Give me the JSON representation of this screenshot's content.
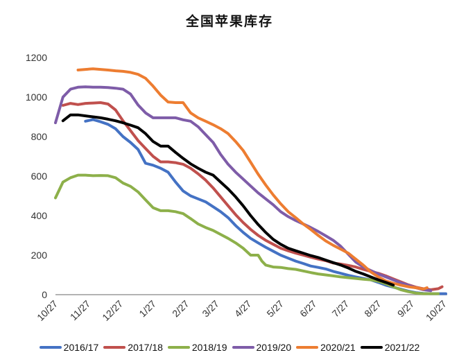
{
  "title": "全国苹果库存",
  "chart_data": {
    "type": "line",
    "title": "全国苹果库存",
    "xlabel": "",
    "ylabel": "",
    "ylim": [
      0,
      1200
    ],
    "yticks": [
      0,
      200,
      400,
      600,
      800,
      1000,
      1200
    ],
    "x_unit": "weeks since 10/27",
    "xlim": [
      0,
      52
    ],
    "xticks": [
      {
        "pos": 0,
        "label": "10/27"
      },
      {
        "pos": 4.35,
        "label": "11/27"
      },
      {
        "pos": 8.7,
        "label": "12/27"
      },
      {
        "pos": 13.1,
        "label": "1/27"
      },
      {
        "pos": 17.5,
        "label": "2/27"
      },
      {
        "pos": 21.5,
        "label": "3/27"
      },
      {
        "pos": 25.8,
        "label": "4/27"
      },
      {
        "pos": 30.1,
        "label": "5/27"
      },
      {
        "pos": 34.5,
        "label": "6/27"
      },
      {
        "pos": 38.8,
        "label": "7/27"
      },
      {
        "pos": 43.1,
        "label": "8/27"
      },
      {
        "pos": 47.5,
        "label": "9/27"
      },
      {
        "pos": 51.8,
        "label": "10/27"
      }
    ],
    "grid": false,
    "legend_position": "bottom",
    "series": [
      {
        "name": "2016/17",
        "color": "#4472C4",
        "points": [
          [
            4,
            878
          ],
          [
            5,
            886
          ],
          [
            6,
            875
          ],
          [
            7,
            862
          ],
          [
            8,
            840
          ],
          [
            9,
            800
          ],
          [
            10,
            770
          ],
          [
            11,
            735
          ],
          [
            12,
            665
          ],
          [
            13,
            655
          ],
          [
            14,
            640
          ],
          [
            15,
            620
          ],
          [
            16,
            570
          ],
          [
            17,
            525
          ],
          [
            18,
            500
          ],
          [
            19,
            485
          ],
          [
            20,
            470
          ],
          [
            21,
            445
          ],
          [
            22,
            420
          ],
          [
            23,
            390
          ],
          [
            24,
            350
          ],
          [
            25,
            315
          ],
          [
            26,
            285
          ],
          [
            27,
            262
          ],
          [
            28,
            240
          ],
          [
            29,
            220
          ],
          [
            30,
            200
          ],
          [
            31,
            185
          ],
          [
            32,
            170
          ],
          [
            33,
            158
          ],
          [
            34,
            145
          ],
          [
            35,
            138
          ],
          [
            36,
            130
          ],
          [
            37,
            118
          ],
          [
            38,
            108
          ],
          [
            39,
            98
          ],
          [
            40,
            90
          ],
          [
            41,
            82
          ],
          [
            42,
            75
          ],
          [
            43,
            62
          ],
          [
            44,
            48
          ],
          [
            45,
            38
          ],
          [
            46,
            28
          ],
          [
            47,
            18
          ],
          [
            48,
            10
          ],
          [
            49,
            6
          ],
          [
            50,
            5
          ],
          [
            51,
            5
          ],
          [
            52,
            5
          ]
        ]
      },
      {
        "name": "2017/18",
        "color": "#C0504D",
        "points": [
          [
            1,
            958
          ],
          [
            2,
            968
          ],
          [
            3,
            962
          ],
          [
            4,
            968
          ],
          [
            5,
            970
          ],
          [
            6,
            972
          ],
          [
            7,
            965
          ],
          [
            8,
            935
          ],
          [
            9,
            880
          ],
          [
            10,
            830
          ],
          [
            11,
            780
          ],
          [
            12,
            740
          ],
          [
            13,
            700
          ],
          [
            14,
            672
          ],
          [
            15,
            672
          ],
          [
            16,
            668
          ],
          [
            17,
            660
          ],
          [
            18,
            640
          ],
          [
            19,
            612
          ],
          [
            20,
            580
          ],
          [
            21,
            540
          ],
          [
            22,
            495
          ],
          [
            23,
            450
          ],
          [
            24,
            405
          ],
          [
            25,
            365
          ],
          [
            26,
            330
          ],
          [
            27,
            300
          ],
          [
            28,
            275
          ],
          [
            29,
            255
          ],
          [
            30,
            235
          ],
          [
            31,
            222
          ],
          [
            32,
            210
          ],
          [
            33,
            200
          ],
          [
            34,
            190
          ],
          [
            35,
            180
          ],
          [
            36,
            172
          ],
          [
            37,
            160
          ],
          [
            38,
            155
          ],
          [
            39,
            148
          ],
          [
            40,
            140
          ],
          [
            41,
            128
          ],
          [
            42,
            118
          ],
          [
            43,
            108
          ],
          [
            44,
            95
          ],
          [
            45,
            80
          ],
          [
            46,
            65
          ],
          [
            47,
            50
          ],
          [
            48,
            38
          ],
          [
            49,
            30
          ],
          [
            50,
            25
          ],
          [
            51,
            30
          ],
          [
            51.5,
            40
          ]
        ]
      },
      {
        "name": "2018/19",
        "color": "#8DB04A",
        "points": [
          [
            0,
            490
          ],
          [
            1,
            570
          ],
          [
            2,
            592
          ],
          [
            3,
            605
          ],
          [
            4,
            605
          ],
          [
            5,
            602
          ],
          [
            6,
            603
          ],
          [
            7,
            602
          ],
          [
            8,
            592
          ],
          [
            9,
            565
          ],
          [
            10,
            548
          ],
          [
            11,
            520
          ],
          [
            12,
            480
          ],
          [
            13,
            440
          ],
          [
            14,
            425
          ],
          [
            15,
            425
          ],
          [
            16,
            420
          ],
          [
            17,
            410
          ],
          [
            18,
            385
          ],
          [
            19,
            358
          ],
          [
            20,
            340
          ],
          [
            21,
            325
          ],
          [
            22,
            305
          ],
          [
            23,
            285
          ],
          [
            24,
            262
          ],
          [
            25,
            235
          ],
          [
            26,
            200
          ],
          [
            27,
            200
          ],
          [
            27.5,
            170
          ],
          [
            28,
            150
          ],
          [
            29,
            140
          ],
          [
            30,
            138
          ],
          [
            31,
            132
          ],
          [
            32,
            128
          ],
          [
            33,
            120
          ],
          [
            34,
            112
          ],
          [
            35,
            105
          ],
          [
            36,
            100
          ],
          [
            37,
            95
          ],
          [
            38,
            90
          ],
          [
            39,
            86
          ],
          [
            40,
            82
          ],
          [
            41,
            78
          ],
          [
            42,
            75
          ],
          [
            43,
            68
          ],
          [
            44,
            55
          ],
          [
            45,
            40
          ],
          [
            46,
            25
          ],
          [
            47,
            15
          ],
          [
            48,
            8
          ],
          [
            49,
            5
          ],
          [
            50,
            5
          ],
          [
            51,
            5
          ]
        ]
      },
      {
        "name": "2019/20",
        "color": "#7E5CA8",
        "points": [
          [
            0,
            870
          ],
          [
            1,
            1000
          ],
          [
            2,
            1040
          ],
          [
            3,
            1050
          ],
          [
            4,
            1052
          ],
          [
            5,
            1050
          ],
          [
            6,
            1050
          ],
          [
            7,
            1048
          ],
          [
            8,
            1045
          ],
          [
            9,
            1040
          ],
          [
            10,
            1015
          ],
          [
            11,
            960
          ],
          [
            12,
            920
          ],
          [
            13,
            895
          ],
          [
            14,
            895
          ],
          [
            15,
            895
          ],
          [
            16,
            895
          ],
          [
            17,
            885
          ],
          [
            18,
            878
          ],
          [
            19,
            850
          ],
          [
            20,
            810
          ],
          [
            21,
            770
          ],
          [
            22,
            710
          ],
          [
            23,
            660
          ],
          [
            24,
            620
          ],
          [
            25,
            585
          ],
          [
            26,
            550
          ],
          [
            27,
            515
          ],
          [
            28,
            485
          ],
          [
            29,
            455
          ],
          [
            30,
            420
          ],
          [
            31,
            395
          ],
          [
            32,
            375
          ],
          [
            33,
            358
          ],
          [
            34,
            340
          ],
          [
            35,
            320
          ],
          [
            36,
            298
          ],
          [
            37,
            275
          ],
          [
            38,
            245
          ],
          [
            39,
            205
          ],
          [
            40,
            165
          ],
          [
            41,
            140
          ],
          [
            42,
            122
          ],
          [
            43,
            105
          ],
          [
            44,
            90
          ],
          [
            45,
            75
          ],
          [
            46,
            60
          ],
          [
            47,
            48
          ],
          [
            48,
            35
          ],
          [
            49,
            25
          ],
          [
            50,
            20
          ]
        ]
      },
      {
        "name": "2020/21",
        "color": "#ED7D31",
        "points": [
          [
            3,
            1137
          ],
          [
            4,
            1140
          ],
          [
            5,
            1143
          ],
          [
            6,
            1140
          ],
          [
            7,
            1137
          ],
          [
            8,
            1133
          ],
          [
            9,
            1130
          ],
          [
            10,
            1125
          ],
          [
            11,
            1115
          ],
          [
            12,
            1095
          ],
          [
            13,
            1055
          ],
          [
            14,
            1010
          ],
          [
            15,
            975
          ],
          [
            16,
            972
          ],
          [
            17,
            972
          ],
          [
            18,
            920
          ],
          [
            19,
            895
          ],
          [
            20,
            878
          ],
          [
            21,
            860
          ],
          [
            22,
            840
          ],
          [
            23,
            815
          ],
          [
            24,
            775
          ],
          [
            25,
            730
          ],
          [
            26,
            670
          ],
          [
            27,
            610
          ],
          [
            28,
            555
          ],
          [
            29,
            505
          ],
          [
            30,
            460
          ],
          [
            31,
            420
          ],
          [
            32,
            390
          ],
          [
            33,
            358
          ],
          [
            34,
            330
          ],
          [
            35,
            300
          ],
          [
            36,
            272
          ],
          [
            37,
            250
          ],
          [
            38,
            230
          ],
          [
            39,
            210
          ],
          [
            40,
            180
          ],
          [
            41,
            150
          ],
          [
            42,
            115
          ],
          [
            43,
            90
          ],
          [
            44,
            70
          ],
          [
            45,
            58
          ],
          [
            46,
            48
          ],
          [
            47,
            40
          ],
          [
            48,
            35
          ],
          [
            49,
            28
          ],
          [
            49.5,
            35
          ]
        ]
      },
      {
        "name": "2021/22",
        "color": "#000000",
        "points": [
          [
            1,
            880
          ],
          [
            2,
            910
          ],
          [
            3,
            910
          ],
          [
            4,
            905
          ],
          [
            5,
            900
          ],
          [
            6,
            895
          ],
          [
            7,
            888
          ],
          [
            8,
            880
          ],
          [
            9,
            870
          ],
          [
            10,
            858
          ],
          [
            11,
            845
          ],
          [
            12,
            815
          ],
          [
            13,
            775
          ],
          [
            14,
            752
          ],
          [
            15,
            752
          ],
          [
            16,
            720
          ],
          [
            17,
            690
          ],
          [
            18,
            662
          ],
          [
            19,
            640
          ],
          [
            20,
            620
          ],
          [
            21,
            605
          ],
          [
            22,
            570
          ],
          [
            23,
            535
          ],
          [
            24,
            495
          ],
          [
            25,
            450
          ],
          [
            26,
            400
          ],
          [
            27,
            355
          ],
          [
            28,
            315
          ],
          [
            29,
            280
          ],
          [
            30,
            255
          ],
          [
            31,
            235
          ],
          [
            32,
            222
          ],
          [
            33,
            210
          ],
          [
            34,
            198
          ],
          [
            35,
            188
          ],
          [
            36,
            175
          ],
          [
            37,
            162
          ],
          [
            38,
            150
          ],
          [
            39,
            135
          ],
          [
            40,
            118
          ],
          [
            41,
            105
          ],
          [
            42,
            90
          ],
          [
            43,
            75
          ],
          [
            44,
            62
          ],
          [
            45,
            48
          ]
        ]
      }
    ]
  },
  "legend": [
    {
      "label": "2016/17",
      "color": "#4472C4"
    },
    {
      "label": "2017/18",
      "color": "#C0504D"
    },
    {
      "label": "2018/19",
      "color": "#8DB04A"
    },
    {
      "label": "2019/20",
      "color": "#7E5CA8"
    },
    {
      "label": "2020/21",
      "color": "#ED7D31"
    },
    {
      "label": "2021/22",
      "color": "#000000"
    }
  ]
}
